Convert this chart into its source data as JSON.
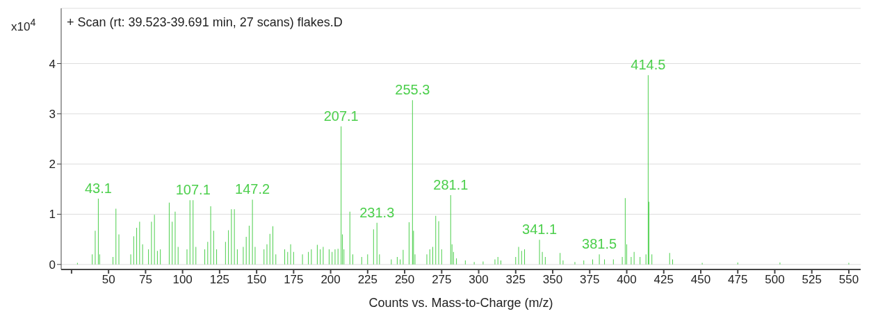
{
  "chart_data": {
    "type": "bar",
    "title": "+ Scan (rt: 39.523-39.691 min, 27 scans) flakes.D",
    "xlabel": "Counts vs. Mass-to-Charge (m/z)",
    "ylabel": "x10$^{4}$",
    "color": "#4ccf4c",
    "x": [
      29,
      39,
      41,
      43.1,
      44,
      53,
      55,
      57,
      65,
      67,
      69,
      71,
      73,
      77,
      79,
      81,
      83,
      85,
      91,
      93,
      95,
      97,
      103,
      105,
      107.1,
      109,
      115,
      117,
      119,
      121,
      123,
      129,
      131,
      133,
      135,
      137,
      141,
      143,
      145,
      147.2,
      149,
      155,
      157,
      159,
      161,
      163,
      169,
      171,
      173,
      175,
      181,
      185,
      187,
      191,
      193,
      195,
      199,
      201,
      203,
      205,
      207.1,
      208,
      209,
      213,
      215,
      221,
      225,
      229,
      231.3,
      233,
      241,
      245,
      247,
      249,
      253,
      255.3,
      256,
      257,
      265,
      267,
      269,
      271,
      273,
      275,
      281.1,
      282,
      283,
      285,
      291,
      297,
      303,
      311,
      313,
      315,
      325,
      327,
      329,
      331,
      341.1,
      343,
      345,
      355,
      357,
      365,
      371,
      377,
      381.5,
      385,
      391,
      397,
      399,
      400,
      403,
      405,
      409,
      413,
      414.5,
      415,
      417,
      429,
      431,
      451,
      475,
      503.5,
      550
    ],
    "values": [
      0.03,
      0.2,
      0.67,
      1.31,
      0.2,
      0.15,
      1.11,
      0.6,
      0.2,
      0.56,
      0.73,
      0.85,
      0.4,
      0.3,
      0.85,
      0.99,
      0.27,
      0.3,
      1.23,
      0.85,
      1.05,
      0.35,
      0.3,
      1.28,
      1.28,
      0.35,
      0.3,
      0.45,
      1.16,
      0.67,
      0.3,
      0.45,
      0.68,
      1.1,
      1.1,
      0.3,
      0.35,
      0.55,
      0.77,
      1.29,
      0.35,
      0.3,
      0.4,
      0.61,
      0.76,
      0.2,
      0.3,
      0.25,
      0.4,
      0.25,
      0.2,
      0.25,
      0.3,
      0.39,
      0.3,
      0.35,
      0.3,
      0.25,
      0.3,
      0.31,
      2.75,
      0.6,
      0.3,
      1.05,
      0.2,
      0.15,
      0.2,
      0.7,
      0.83,
      0.2,
      0.1,
      0.15,
      0.1,
      0.29,
      0.84,
      3.27,
      0.67,
      0.2,
      0.2,
      0.3,
      0.35,
      0.97,
      0.86,
      0.3,
      1.38,
      0.4,
      0.25,
      0.12,
      0.08,
      0.05,
      0.06,
      0.1,
      0.15,
      0.08,
      0.15,
      0.35,
      0.27,
      0.3,
      0.49,
      0.25,
      0.15,
      0.23,
      0.08,
      0.05,
      0.08,
      0.1,
      0.2,
      0.1,
      0.1,
      0.15,
      1.32,
      0.4,
      0.15,
      0.25,
      0.15,
      0.2,
      3.77,
      1.25,
      0.2,
      0.23,
      0.1,
      0.03,
      0.04,
      0.04,
      0.03
    ],
    "annotations": [
      {
        "text": "43.1",
        "x": 43.1,
        "y": 1.31
      },
      {
        "text": "107.1",
        "x": 107.1,
        "y": 1.28
      },
      {
        "text": "147.2",
        "x": 147.2,
        "y": 1.29
      },
      {
        "text": "207.1",
        "x": 207.1,
        "y": 2.75
      },
      {
        "text": "231.3",
        "x": 231.3,
        "y": 0.83
      },
      {
        "text": "255.3",
        "x": 255.3,
        "y": 3.27
      },
      {
        "text": "281.1",
        "x": 281.1,
        "y": 1.38
      },
      {
        "text": "341.1",
        "x": 341.1,
        "y": 0.49
      },
      {
        "text": "381.5",
        "x": 381.5,
        "y": 0.2
      },
      {
        "text": "414.5",
        "x": 414.5,
        "y": 3.77
      }
    ],
    "xlim": [
      18,
      558
    ],
    "ylim": [
      -0.1,
      5.1
    ],
    "xticks": [
      {
        "value": 25,
        "label": null
      },
      50,
      75,
      100,
      125,
      150,
      175,
      200,
      225,
      250,
      275,
      300,
      325,
      350,
      375,
      400,
      425,
      450,
      475,
      500,
      525,
      550
    ],
    "yticks": [
      0,
      1,
      2,
      3,
      4
    ],
    "grid": "y"
  }
}
